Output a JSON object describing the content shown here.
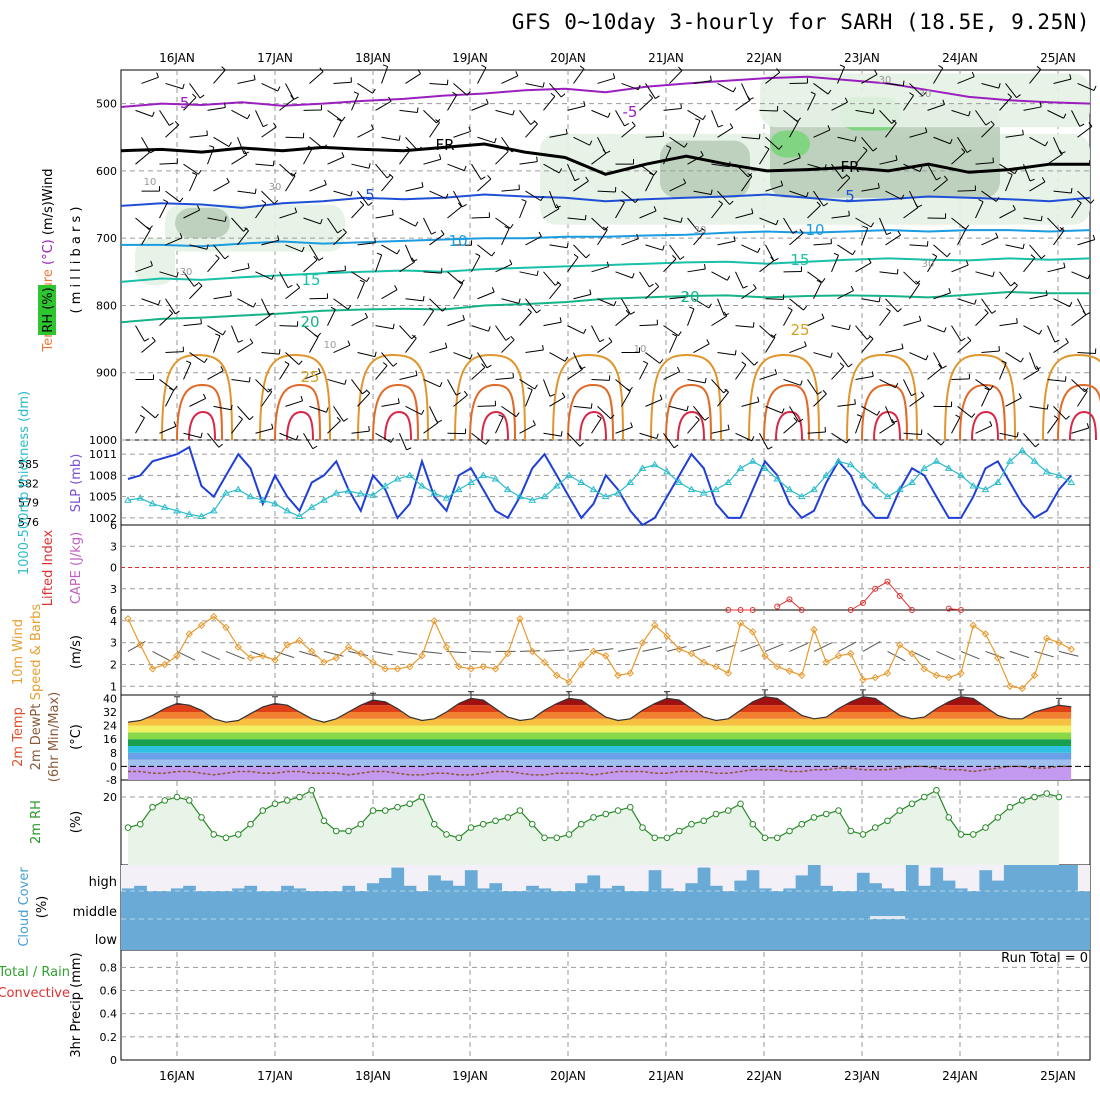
{
  "title": "GFS 0~10day 3-hourly for SARH (18.5E, 9.25N)",
  "run_total": "Run Total = 0",
  "dates": [
    "16JAN",
    "17JAN",
    "18JAN",
    "19JAN",
    "20JAN",
    "21JAN",
    "22JAN",
    "23JAN",
    "24JAN",
    "25JAN"
  ],
  "chart_data": [
    {
      "id": "profile",
      "type": "heatmap",
      "ylabel_parts": [
        {
          "text": "Wind",
          "color": "#000000"
        },
        {
          "text": " (m/s)",
          "color": "#000000"
        },
        {
          "text": "(°C)",
          "color": "#9a1fbf"
        },
        {
          "text": "Temperature ",
          "color": "#e8783a"
        }
      ],
      "ylabel": "( m i l l i b a r s )",
      "rh_label": "RH (%)",
      "yticks": [
        500,
        600,
        700,
        800,
        900,
        1000
      ],
      "ylim": [
        450,
        1000
      ],
      "isotherm_labels": [
        "-5",
        "-5",
        "FR",
        "FR",
        "5",
        "5",
        "10",
        "10",
        "15",
        "15",
        "20",
        "20",
        "25",
        "25"
      ],
      "rh_labels": [
        "10",
        "30",
        "30",
        "10",
        "30",
        "30",
        "30",
        "30",
        "10"
      ],
      "isotherms": [
        {
          "name": "-5",
          "color": "#9a1fbf",
          "levels": [
            505,
            500,
            502,
            498,
            503,
            500,
            496,
            493,
            488,
            485,
            480,
            478,
            483,
            475,
            470,
            466,
            462,
            460,
            465,
            470,
            480,
            490,
            495,
            498,
            500
          ]
        },
        {
          "name": "FR",
          "color": "#000000",
          "levels": [
            570,
            568,
            572,
            566,
            570,
            565,
            568,
            570,
            565,
            560,
            572,
            580,
            605,
            590,
            578,
            590,
            600,
            598,
            595,
            600,
            590,
            602,
            598,
            590,
            590
          ]
        },
        {
          "name": "5",
          "color": "#1f4fd6",
          "levels": [
            652,
            648,
            650,
            655,
            648,
            645,
            640,
            642,
            640,
            635,
            638,
            640,
            645,
            642,
            640,
            638,
            635,
            640,
            645,
            642,
            638,
            640,
            642,
            645,
            640
          ]
        },
        {
          "name": "10",
          "color": "#1b9be0",
          "levels": [
            710,
            710,
            712,
            708,
            705,
            708,
            706,
            704,
            702,
            700,
            700,
            698,
            698,
            696,
            695,
            692,
            690,
            692,
            690,
            688,
            690,
            688,
            688,
            690,
            688
          ]
        },
        {
          "name": "15",
          "color": "#19c0a8",
          "levels": [
            765,
            760,
            762,
            758,
            755,
            752,
            750,
            748,
            750,
            746,
            744,
            742,
            740,
            738,
            736,
            735,
            738,
            735,
            732,
            730,
            732,
            733,
            730,
            732,
            730
          ]
        },
        {
          "name": "20",
          "color": "#16b38a",
          "levels": [
            825,
            820,
            818,
            815,
            812,
            808,
            806,
            805,
            806,
            800,
            798,
            795,
            790,
            788,
            786,
            785,
            788,
            786,
            785,
            786,
            788,
            784,
            780,
            782,
            782
          ]
        }
      ]
    },
    {
      "id": "slp-thickness",
      "type": "line",
      "ylabel": "SLP (mb)",
      "ylabel2": "1000-500mb thickness (dm)",
      "yticks_left": [
        "585",
        "582",
        "579",
        "576"
      ],
      "yticks_right": [
        "1011",
        "1008",
        "1005",
        "1002"
      ],
      "series": [
        {
          "name": "SLP (mb)",
          "color": "#1f3fd6",
          "values": [
            1007.5,
            1008,
            1010,
            1010.5,
            1011,
            1012,
            1006.5,
            1005,
            1008,
            1011,
            1009,
            1004,
            1008,
            1005,
            1003,
            1007,
            1008,
            1010,
            1006,
            1003,
            1008,
            1006,
            1002,
            1004,
            1010,
            1005,
            1003,
            1008,
            1009,
            1006,
            1003,
            1002,
            1005,
            1009,
            1011,
            1008,
            1005,
            1002,
            1004,
            1008,
            1006,
            1003,
            1001,
            1002,
            1005,
            1008,
            1011,
            1009,
            1004,
            1002,
            1002,
            1006,
            1010,
            1008,
            1004,
            1002,
            1003,
            1007,
            1010,
            1008,
            1004,
            1002,
            1002,
            1006,
            1009,
            1008,
            1005,
            1002,
            1002,
            1005,
            1009,
            1010,
            1007,
            1004,
            1002,
            1003,
            1006,
            1008
          ]
        },
        {
          "name": "1000-500mb thickness (dm)",
          "color": "#2bbccc",
          "values": [
            1004.5,
            1004.8,
            1004,
            1003.5,
            1003,
            1002.5,
            1002.2,
            1003,
            1005.5,
            1006,
            1005,
            1004.5,
            1004,
            1003,
            1002.2,
            1003.5,
            1004.5,
            1005.5,
            1005.8,
            1005.4,
            1005.2,
            1006.5,
            1007.5,
            1008,
            1006.5,
            1005.5,
            1004.8,
            1006,
            1007,
            1008,
            1007.5,
            1006,
            1005,
            1004.5,
            1005,
            1006.5,
            1008,
            1007,
            1006,
            1005,
            1005.5,
            1007,
            1009,
            1009.5,
            1008.5,
            1007,
            1006,
            1005.5,
            1006,
            1007,
            1009,
            1010,
            1009,
            1007.5,
            1006,
            1005,
            1006,
            1008,
            1010,
            1009.5,
            1008,
            1006.5,
            1005,
            1006,
            1007,
            1009,
            1010,
            1009,
            1008,
            1006.5,
            1006,
            1007,
            1010,
            1011.5,
            1010,
            1008.5,
            1008,
            1007
          ]
        }
      ]
    },
    {
      "id": "cape-li",
      "type": "line",
      "ylabel": "CAPE (J/kg)",
      "ylabel2": "Lifted Index",
      "yticks": [
        "6",
        "3",
        "0",
        "3",
        "6"
      ],
      "ylim": [
        -6,
        6
      ],
      "series": [
        {
          "name": "Lifted Index",
          "color": "#e03030",
          "values": [
            null,
            null,
            null,
            null,
            null,
            null,
            null,
            null,
            null,
            null,
            null,
            null,
            null,
            null,
            null,
            null,
            null,
            null,
            null,
            null,
            null,
            null,
            null,
            null,
            null,
            null,
            null,
            null,
            null,
            null,
            null,
            null,
            null,
            null,
            null,
            null,
            null,
            null,
            null,
            null,
            null,
            null,
            null,
            null,
            null,
            null,
            null,
            null,
            null,
            6,
            6,
            6,
            null,
            5.5,
            4.5,
            6,
            null,
            null,
            null,
            6,
            5,
            3,
            2,
            4,
            6,
            null,
            null,
            5.8,
            6
          ]
        }
      ]
    },
    {
      "id": "wind10m",
      "type": "line",
      "ylabel": "Speed & Barbs",
      "ylabel2": "10m Wind",
      "ylabel_units": "(m/s)",
      "yticks": [
        "4",
        "3",
        "2",
        "1"
      ],
      "ylim": [
        0.6,
        4.5
      ],
      "series": [
        {
          "name": "10m Wind Speed",
          "color": "#e89a30",
          "values": [
            4.1,
            2.9,
            1.8,
            2.0,
            2.4,
            3.4,
            3.8,
            4.2,
            3.7,
            2.8,
            2.3,
            2.4,
            2.2,
            2.9,
            3.1,
            2.6,
            2.1,
            2.3,
            2.8,
            2.5,
            2.1,
            1.8,
            1.8,
            1.9,
            2.4,
            4.0,
            2.8,
            1.9,
            1.8,
            1.9,
            1.8,
            2.5,
            4.1,
            2.6,
            2.1,
            1.5,
            1.2,
            2.0,
            2.6,
            2.4,
            1.5,
            1.6,
            3.0,
            3.8,
            3.3,
            2.7,
            2.5,
            2.1,
            1.9,
            1.6,
            3.9,
            3.5,
            2.4,
            1.9,
            1.7,
            1.5,
            3.6,
            2.1,
            2.4,
            2.5,
            1.3,
            1.4,
            1.6,
            2.9,
            2.5,
            1.8,
            1.5,
            1.4,
            1.6,
            3.8,
            3.4,
            2.3,
            1.0,
            0.9,
            1.5,
            3.2,
            3.0,
            2.7
          ]
        }
      ]
    },
    {
      "id": "temp2m",
      "type": "area",
      "ylabel": "2m Temp",
      "ylabel2": "2m DewPt",
      "ylabel3": "(6hr Min/Max)",
      "ylabel_units": "(°C)",
      "yticks": [
        "40",
        "32",
        "24",
        "16",
        "8",
        "0",
        "-8"
      ],
      "ylim": [
        -8,
        42
      ],
      "series": [
        {
          "name": "2m Temp",
          "color": "#a01010",
          "values": [
            26,
            27,
            30,
            34,
            37,
            36,
            33,
            28,
            26,
            27,
            31,
            35,
            37,
            36,
            32,
            28,
            26,
            28,
            32,
            36,
            39,
            38,
            34,
            29,
            27,
            28,
            32,
            37,
            40,
            39,
            34,
            29,
            27,
            28,
            33,
            37,
            40,
            39,
            34,
            29,
            27,
            28,
            33,
            37,
            40,
            39,
            34,
            29,
            27,
            28,
            33,
            38,
            41,
            40,
            35,
            30,
            28,
            29,
            34,
            38,
            41,
            40,
            35,
            30,
            28,
            29,
            34,
            38,
            41,
            40,
            35,
            30,
            28,
            28,
            32,
            34,
            36,
            35
          ]
        },
        {
          "name": "2m DewPt",
          "color": "#8a5a3a",
          "values": [
            -3,
            -3,
            -4,
            -4,
            -3,
            -3,
            -4,
            -5,
            -4,
            -3,
            -3,
            -4,
            -4,
            -3,
            -3,
            -4,
            -4,
            -4,
            -5,
            -4,
            -3,
            -3,
            -4,
            -5,
            -5,
            -4,
            -4,
            -5,
            -5,
            -4,
            -3,
            -3,
            -4,
            -5,
            -5,
            -4,
            -4,
            -4,
            -5,
            -4,
            -3,
            -3,
            -3,
            -4,
            -4,
            -3,
            -3,
            -3,
            -4,
            -4,
            -3,
            -2,
            -2,
            -2,
            -3,
            -3,
            -2,
            -2,
            -1,
            -1,
            -2,
            -2,
            -2,
            -1,
            0,
            0,
            -1,
            -2,
            -2,
            -3,
            -2,
            -1,
            0,
            0,
            -1,
            -1,
            0,
            0
          ]
        }
      ]
    },
    {
      "id": "rh2m",
      "type": "area",
      "ylabel": "2m RH",
      "ylabel_units": "(%)",
      "yticks": [
        "20"
      ],
      "ylim": [
        0,
        25
      ],
      "series": [
        {
          "name": "2m RH",
          "color": "#2a8a2a",
          "values": [
            11,
            12,
            17,
            19,
            20,
            19,
            14,
            9,
            8,
            9,
            12,
            16,
            18,
            19,
            20,
            22,
            13,
            10,
            10,
            12,
            16,
            16,
            17,
            18,
            20,
            12,
            9,
            8,
            11,
            12,
            13,
            14,
            16,
            12,
            8,
            8,
            9,
            12,
            14,
            15,
            16,
            17,
            11,
            8,
            8,
            10,
            12,
            13,
            15,
            16,
            18,
            12,
            8,
            8,
            10,
            12,
            14,
            15,
            16,
            10,
            9,
            11,
            13,
            16,
            18,
            20,
            22,
            14,
            9,
            9,
            11,
            14,
            17,
            19,
            20,
            21,
            20
          ]
        }
      ]
    },
    {
      "id": "cloud",
      "type": "heatmap",
      "ylabel": "Cloud Cover",
      "ylabel_units": "(%)",
      "yticks": [
        "high",
        "middle",
        "low"
      ],
      "series": [
        {
          "name": "high",
          "color": "#6aaad6",
          "values": [
            10,
            20,
            0,
            0,
            10,
            20,
            0,
            0,
            0,
            10,
            20,
            0,
            0,
            20,
            10,
            0,
            0,
            0,
            20,
            0,
            30,
            50,
            90,
            20,
            0,
            60,
            40,
            20,
            80,
            10,
            30,
            0,
            0,
            20,
            10,
            0,
            0,
            30,
            60,
            10,
            20,
            0,
            0,
            80,
            10,
            0,
            30,
            90,
            20,
            0,
            40,
            80,
            10,
            0,
            10,
            60,
            100,
            20,
            0,
            0,
            70,
            30,
            10,
            0,
            100,
            20,
            90,
            40,
            10,
            0,
            80,
            40,
            100,
            100,
            100,
            100,
            100,
            100
          ]
        }
      ]
    },
    {
      "id": "precip",
      "type": "bar",
      "ylabel": "3hr Precip (mm)",
      "ylabel2": "Total / Rain",
      "ylabel3": "Convective",
      "yticks": [
        "0.8",
        "0.6",
        "0.4",
        "0.2",
        "0"
      ],
      "ylim": [
        0,
        0.95
      ],
      "series": [
        {
          "name": "Total / Rain",
          "color": "#30a030",
          "values": [
            0,
            0,
            0,
            0,
            0,
            0,
            0,
            0,
            0,
            0
          ]
        }
      ]
    }
  ]
}
